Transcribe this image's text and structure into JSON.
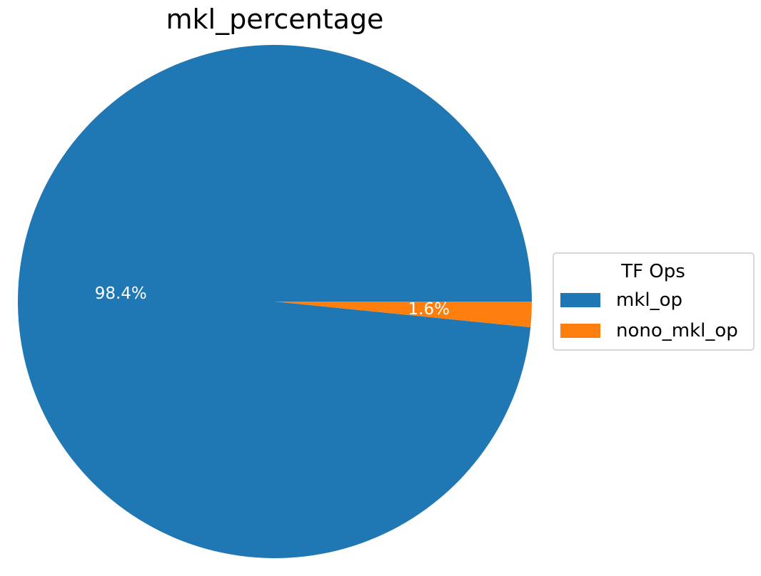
{
  "chart_data": {
    "type": "pie",
    "title": "mkl_percentage",
    "categories": [
      "mkl_op",
      "nono_mkl_op"
    ],
    "values": [
      98.4,
      1.6
    ],
    "value_labels": [
      "98.4%",
      "1.6%"
    ],
    "colors": [
      "#1f77b4",
      "#ff7f0e"
    ],
    "legend": {
      "title": "TF Ops",
      "placement": "center-right"
    },
    "start_angle_deg": 0,
    "direction": "counterclockwise"
  }
}
